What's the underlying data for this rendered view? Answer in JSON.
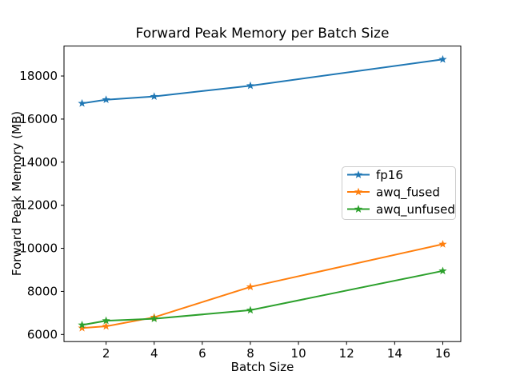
{
  "figure": {
    "background": "#ffffff",
    "frame_color": "#000000"
  },
  "chart_data": {
    "type": "line",
    "title": "Forward Peak Memory per Batch Size",
    "xlabel": "Batch Size",
    "ylabel": "Forward Peak Memory (MB)",
    "x": [
      1,
      2,
      4,
      8,
      16
    ],
    "series": [
      {
        "name": "fp16",
        "color": "#1f77b4",
        "marker": "star",
        "values": [
          16730,
          16900,
          17050,
          17550,
          18770
        ]
      },
      {
        "name": "awq_fused",
        "color": "#ff7f0e",
        "marker": "star",
        "values": [
          6300,
          6380,
          6800,
          8210,
          10190
        ]
      },
      {
        "name": "awq_unfused",
        "color": "#2ca02c",
        "marker": "star",
        "values": [
          6440,
          6640,
          6730,
          7130,
          8950
        ]
      }
    ],
    "xlim": [
      0.25,
      16.75
    ],
    "ylim": [
      5670,
      19390
    ],
    "xticks": [
      2,
      4,
      6,
      8,
      10,
      12,
      14,
      16
    ],
    "yticks": [
      6000,
      8000,
      10000,
      12000,
      14000,
      16000,
      18000
    ],
    "grid": false,
    "legend": {
      "position": "center-right",
      "border_color": "#cccccc",
      "background": "#ffffff"
    }
  }
}
